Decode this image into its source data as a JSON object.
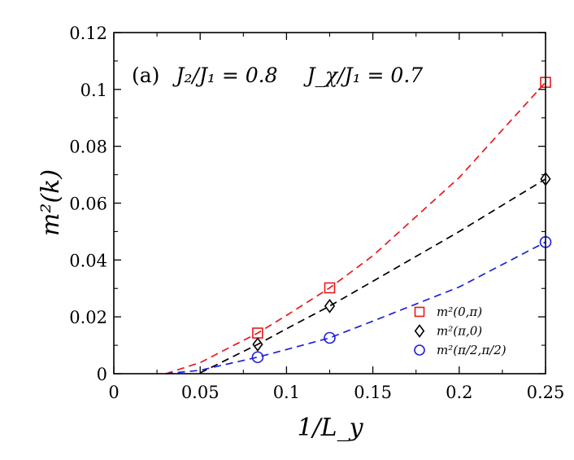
{
  "chart_data": {
    "type": "scatter",
    "title": "",
    "xlabel": "1/L_y",
    "ylabel": "m²(k)",
    "xlim": [
      0,
      0.25
    ],
    "ylim": [
      0,
      0.12
    ],
    "grid": false,
    "legend_position": "bottom-right",
    "xticks": [
      0,
      0.05,
      0.1,
      0.15,
      0.2,
      0.25
    ],
    "xtick_labels": [
      "0",
      "0.05",
      "0.1",
      "0.15",
      "0.2",
      "0.25"
    ],
    "yticks": [
      0,
      0.02,
      0.04,
      0.06,
      0.08,
      0.1,
      0.12
    ],
    "ytick_labels": [
      "0",
      "0.02",
      "0.04",
      "0.06",
      "0.08",
      "0.1",
      "0.12"
    ],
    "annotation": {
      "panel": "(a)",
      "param1": "J₂/J₁ = 0.8",
      "param2": "J_χ/J₁ = 0.7"
    },
    "series": [
      {
        "name": "m²(0,π)",
        "marker": "square",
        "color": "#e8191c",
        "x": [
          0.0833,
          0.125,
          0.25
        ],
        "y": [
          0.0143,
          0.0302,
          0.1025
        ],
        "fit_x": [
          0.03,
          0.05,
          0.0833,
          0.1,
          0.125,
          0.15,
          0.2,
          0.25
        ],
        "fit_y": [
          0.0,
          0.0039,
          0.0143,
          0.0205,
          0.0302,
          0.0415,
          0.069,
          0.1025
        ]
      },
      {
        "name": "m²(π,0)",
        "marker": "diamond",
        "color": "#000000",
        "x": [
          0.0833,
          0.125,
          0.25
        ],
        "y": [
          0.0103,
          0.0238,
          0.0685
        ],
        "fit_x": [
          0.05,
          0.0833,
          0.1,
          0.125,
          0.15,
          0.2,
          0.25
        ],
        "fit_y": [
          0.0003,
          0.0103,
          0.0158,
          0.0238,
          0.0325,
          0.05,
          0.0685
        ]
      },
      {
        "name": "m²(π/2,π/2)",
        "marker": "circle",
        "color": "#1f1fd9",
        "x": [
          0.0833,
          0.125,
          0.25
        ],
        "y": [
          0.0058,
          0.0126,
          0.0463
        ],
        "fit_x": [
          0.03,
          0.05,
          0.0833,
          0.1,
          0.125,
          0.15,
          0.2,
          0.25
        ],
        "fit_y": [
          0.0,
          0.0012,
          0.0058,
          0.0085,
          0.0126,
          0.0185,
          0.0305,
          0.0463
        ]
      }
    ]
  }
}
